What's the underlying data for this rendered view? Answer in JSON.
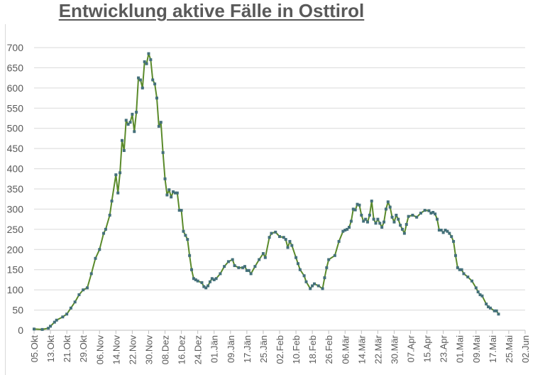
{
  "chart_data": {
    "type": "line",
    "title": "Entwicklung aktive Fälle in Osttirol",
    "xlabel": "",
    "ylabel": "",
    "ylim": [
      0,
      700
    ],
    "yticks": [
      0,
      50,
      100,
      150,
      200,
      250,
      300,
      350,
      400,
      450,
      500,
      550,
      600,
      650,
      700
    ],
    "xlim": [
      "2020-10-05",
      "2021-06-02"
    ],
    "xtick_labels": [
      "05.Okt",
      "13.Okt",
      "21.Okt",
      "29.Okt",
      "06.Nov",
      "14.Nov",
      "22.Nov",
      "30.Nov",
      "08.Dez",
      "16.Dez",
      "24.Dez",
      "01.Jän",
      "09.Jän",
      "17.Jän",
      "25.Jän",
      "02.Feb",
      "10.Feb",
      "18.Feb",
      "26.Feb",
      "06.Mär",
      "14.Mär",
      "22.Mär",
      "30.Mär",
      "07.Apr",
      "15.Apr",
      "23.Apr",
      "01.Mai",
      "09.Mai",
      "17.Mai",
      "25.Mai",
      "02.Jun"
    ],
    "grid": true,
    "line_color": "#5a8a2a",
    "marker_color": "#44707a",
    "series": [
      {
        "x": [
          "2020-10-05",
          "2020-10-09",
          "2020-10-12",
          "2020-10-13",
          "2020-10-15",
          "2020-10-16",
          "2020-10-19",
          "2020-10-21",
          "2020-10-23",
          "2020-10-25",
          "2020-10-27",
          "2020-10-29",
          "2020-10-31",
          "2020-11-02",
          "2020-11-04",
          "2020-11-06",
          "2020-11-08",
          "2020-11-09",
          "2020-11-11",
          "2020-11-12",
          "2020-11-14",
          "2020-11-15",
          "2020-11-16",
          "2020-11-17",
          "2020-11-18",
          "2020-11-19",
          "2020-11-20",
          "2020-11-21",
          "2020-11-22",
          "2020-11-23",
          "2020-11-24",
          "2020-11-25",
          "2020-11-26",
          "2020-11-27",
          "2020-11-28",
          "2020-11-29",
          "2020-11-30",
          "2020-12-01",
          "2020-12-02",
          "2020-12-03",
          "2020-12-04",
          "2020-12-05",
          "2020-12-06",
          "2020-12-07",
          "2020-12-08",
          "2020-12-09",
          "2020-12-10",
          "2020-12-11",
          "2020-12-12",
          "2020-12-13",
          "2020-12-14",
          "2020-12-15",
          "2020-12-16",
          "2020-12-17",
          "2020-12-18",
          "2020-12-19",
          "2020-12-20",
          "2020-12-21",
          "2020-12-22",
          "2020-12-23",
          "2020-12-24",
          "2020-12-26",
          "2020-12-27",
          "2020-12-28",
          "2020-12-29",
          "2020-12-30",
          "2020-12-31",
          "2021-01-01",
          "2021-01-02",
          "2021-01-04",
          "2021-01-06",
          "2021-01-08",
          "2021-01-10",
          "2021-01-11",
          "2021-01-13",
          "2021-01-15",
          "2021-01-16",
          "2021-01-17",
          "2021-01-18",
          "2021-01-19",
          "2021-01-21",
          "2021-01-23",
          "2021-01-25",
          "2021-01-26",
          "2021-01-28",
          "2021-01-29",
          "2021-01-31",
          "2021-02-02",
          "2021-02-04",
          "2021-02-05",
          "2021-02-06",
          "2021-02-07",
          "2021-02-08",
          "2021-02-10",
          "2021-02-11",
          "2021-02-12",
          "2021-02-14",
          "2021-02-15",
          "2021-02-17",
          "2021-02-18",
          "2021-02-19",
          "2021-02-21",
          "2021-02-23",
          "2021-02-24",
          "2021-02-25",
          "2021-02-26",
          "2021-03-01",
          "2021-03-03",
          "2021-03-05",
          "2021-03-06",
          "2021-03-07",
          "2021-03-08",
          "2021-03-09",
          "2021-03-10",
          "2021-03-11",
          "2021-03-12",
          "2021-03-13",
          "2021-03-14",
          "2021-03-15",
          "2021-03-16",
          "2021-03-17",
          "2021-03-18",
          "2021-03-19",
          "2021-03-20",
          "2021-03-21",
          "2021-03-22",
          "2021-03-23",
          "2021-03-24",
          "2021-03-25",
          "2021-03-26",
          "2021-03-27",
          "2021-03-28",
          "2021-03-29",
          "2021-03-30",
          "2021-03-31",
          "2021-04-01",
          "2021-04-02",
          "2021-04-03",
          "2021-04-04",
          "2021-04-05",
          "2021-04-06",
          "2021-04-08",
          "2021-04-10",
          "2021-04-12",
          "2021-04-14",
          "2021-04-16",
          "2021-04-17",
          "2021-04-18",
          "2021-04-19",
          "2021-04-20",
          "2021-04-21",
          "2021-04-22",
          "2021-04-23",
          "2021-04-24",
          "2021-04-25",
          "2021-04-26",
          "2021-04-27",
          "2021-04-28",
          "2021-04-29",
          "2021-04-30",
          "2021-05-01",
          "2021-05-02",
          "2021-05-03",
          "2021-05-05",
          "2021-05-07",
          "2021-05-09",
          "2021-05-10",
          "2021-05-11",
          "2021-05-12",
          "2021-05-14",
          "2021-05-15",
          "2021-05-16",
          "2021-05-18",
          "2021-05-19",
          "2021-05-20"
        ],
        "y": [
          3,
          2,
          5,
          10,
          20,
          25,
          33,
          40,
          55,
          70,
          88,
          100,
          105,
          140,
          178,
          200,
          240,
          250,
          285,
          320,
          385,
          340,
          390,
          470,
          445,
          520,
          510,
          515,
          535,
          492,
          540,
          625,
          620,
          600,
          665,
          660,
          685,
          670,
          620,
          610,
          575,
          505,
          515,
          440,
          375,
          335,
          348,
          330,
          343,
          340,
          340,
          297,
          297,
          245,
          235,
          225,
          185,
          150,
          128,
          125,
          122,
          118,
          108,
          105,
          110,
          120,
          128,
          125,
          128,
          140,
          158,
          170,
          175,
          160,
          155,
          155,
          158,
          148,
          148,
          140,
          158,
          175,
          190,
          180,
          230,
          240,
          243,
          232,
          230,
          225,
          205,
          220,
          210,
          180,
          165,
          150,
          135,
          120,
          103,
          110,
          115,
          110,
          103,
          130,
          155,
          175,
          185,
          220,
          245,
          248,
          250,
          255,
          270,
          300,
          298,
          312,
          310,
          285,
          270,
          275,
          268,
          285,
          320,
          275,
          265,
          275,
          265,
          255,
          268,
          300,
          318,
          305,
          280,
          268,
          285,
          275,
          260,
          250,
          240,
          262,
          282,
          285,
          280,
          290,
          297,
          296,
          290,
          292,
          288,
          275,
          248,
          248,
          242,
          248,
          245,
          240,
          232,
          220,
          185,
          155,
          150,
          150,
          140,
          132,
          122,
          105,
          95,
          88,
          85,
          65,
          58,
          55,
          48,
          48,
          40
        ]
      }
    ]
  }
}
